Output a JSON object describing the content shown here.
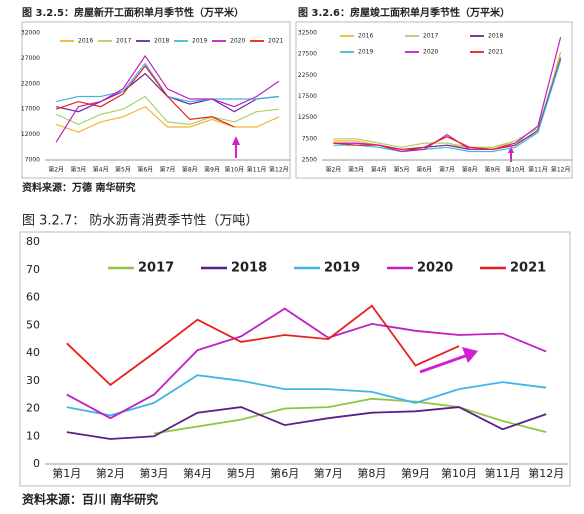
{
  "chart_data": [
    {
      "type": "line",
      "title": "图 3.2.5：房屋新开工面积单月季节性（万平米）",
      "categories": [
        "第2月",
        "第3月",
        "第4月",
        "第5月",
        "第6月",
        "第7月",
        "第8月",
        "第9月",
        "第10月",
        "第11月",
        "第12月"
      ],
      "ylim": [
        7000,
        32000
      ],
      "yticks": [
        7000,
        12000,
        17000,
        22000,
        27000,
        32000
      ],
      "grid": false,
      "series": [
        {
          "name": "2016",
          "color": "#f5b335",
          "values": [
            14000,
            12500,
            14500,
            15500,
            17500,
            13500,
            13500,
            15000,
            13500,
            13500,
            15500
          ]
        },
        {
          "name": "2017",
          "color": "#a8d26a",
          "values": [
            16000,
            14000,
            16000,
            17000,
            19500,
            14500,
            14000,
            15500,
            14500,
            16500,
            17000
          ]
        },
        {
          "name": "2018",
          "color": "#6a2c91",
          "values": [
            17500,
            16500,
            18500,
            20500,
            24000,
            19500,
            18000,
            19000,
            16500,
            19000,
            19500
          ]
        },
        {
          "name": "2019",
          "color": "#41b6e6",
          "values": [
            18500,
            19500,
            19500,
            20500,
            26000,
            19500,
            18500,
            19000,
            19000,
            19000,
            19500
          ]
        },
        {
          "name": "2020",
          "color": "#c21fc2",
          "values": [
            10500,
            17500,
            18500,
            21000,
            27500,
            21000,
            19000,
            19000,
            17500,
            19500,
            22500
          ]
        },
        {
          "name": "2021",
          "color": "#e8201d",
          "values": [
            17000,
            18500,
            17500,
            20000,
            25500,
            19500,
            15000,
            15500,
            13500,
            null,
            null
          ]
        }
      ]
    },
    {
      "type": "line",
      "title": "图 3.2.6：房屋竣工面积单月季节性（万平米）",
      "categories": [
        "第2月",
        "第3月",
        "第4月",
        "第5月",
        "第6月",
        "第7月",
        "第8月",
        "第9月",
        "第10月",
        "第11月",
        "第12月"
      ],
      "ylim": [
        2500,
        32500
      ],
      "yticks": [
        2500,
        7500,
        12500,
        17500,
        22500,
        27500,
        32500
      ],
      "grid": false,
      "series": [
        {
          "name": "2016",
          "color": "#f5b335",
          "values": [
            7000,
            7000,
            6000,
            5000,
            5500,
            6000,
            5500,
            5500,
            6500,
            9000,
            28000
          ]
        },
        {
          "name": "2017",
          "color": "#a8d26a",
          "values": [
            7500,
            7500,
            6500,
            5500,
            6500,
            6500,
            5500,
            5500,
            7000,
            10000,
            27000
          ]
        },
        {
          "name": "2018",
          "color": "#6a2c91",
          "values": [
            6500,
            6500,
            6000,
            4500,
            5500,
            6000,
            5000,
            5000,
            6000,
            9500,
            26500
          ]
        },
        {
          "name": "2019",
          "color": "#41b6e6",
          "values": [
            6000,
            6000,
            5500,
            4500,
            5000,
            5500,
            4500,
            4500,
            5500,
            9000,
            26000
          ]
        },
        {
          "name": "2020",
          "color": "#c21fc2",
          "values": [
            6500,
            6500,
            6000,
            4500,
            5000,
            8500,
            5000,
            5000,
            6500,
            10500,
            31500
          ]
        },
        {
          "name": "2021",
          "color": "#e8201d",
          "values": [
            6500,
            6000,
            6000,
            5000,
            5500,
            8000,
            5500,
            5000,
            6000,
            null,
            null
          ]
        }
      ]
    },
    {
      "type": "line",
      "title": "图 3.2.7： 防水沥青消费季节性（万吨）",
      "categories": [
        "第1月",
        "第2月",
        "第3月",
        "第4月",
        "第5月",
        "第6月",
        "第7月",
        "第8月",
        "第9月",
        "第10月",
        "第11月",
        "第12月"
      ],
      "ylim": [
        0,
        80
      ],
      "yticks": [
        0,
        10,
        20,
        30,
        40,
        50,
        60,
        70,
        80
      ],
      "grid": false,
      "series": [
        {
          "name": "2017",
          "color": "#8fc63f",
          "values": [
            null,
            null,
            11,
            13.5,
            16,
            20,
            20.5,
            23.5,
            22.5,
            20.5,
            15.5,
            11.5
          ]
        },
        {
          "name": "2018",
          "color": "#5b1f8a",
          "values": [
            11.5,
            9,
            10,
            18.5,
            20.5,
            14,
            16.5,
            18.5,
            19,
            20.5,
            12.5,
            18
          ]
        },
        {
          "name": "2019",
          "color": "#41b6e6",
          "values": [
            20.5,
            17.5,
            22,
            32,
            30,
            27,
            27,
            26,
            22,
            27,
            29.5,
            27.5
          ]
        },
        {
          "name": "2020",
          "color": "#c21fc2",
          "values": [
            25,
            16.5,
            25,
            41,
            46,
            56,
            45.5,
            50.5,
            48,
            46.5,
            47,
            40.5
          ]
        },
        {
          "name": "2021",
          "color": "#e8201d",
          "values": [
            43.5,
            28.5,
            40,
            52,
            44,
            46.5,
            45,
            57,
            35.5,
            42.5,
            null,
            null
          ]
        }
      ]
    }
  ],
  "sources": [
    "资料来源：万德 南华研究",
    "资料来源：百川 南华研究"
  ]
}
